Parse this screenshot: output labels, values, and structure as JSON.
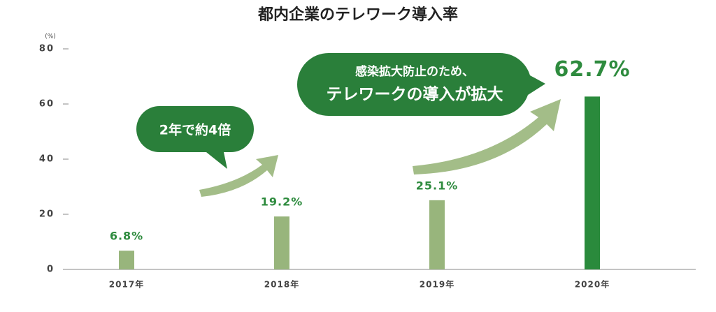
{
  "chart_data": {
    "type": "bar",
    "title": "都内企業のテレワーク導入率",
    "y_unit": "(%)",
    "categories": [
      "2017年",
      "2018年",
      "2019年",
      "2020年"
    ],
    "values": [
      6.8,
      19.2,
      25.1,
      62.7
    ],
    "value_labels": [
      "6.8%",
      "19.2%",
      "25.1%",
      "62.7%"
    ],
    "colors": [
      "#98b57c",
      "#98b57c",
      "#98b57c",
      "#2a8a3c"
    ],
    "label_color": "#2e8b3e",
    "ylim": [
      0,
      80
    ],
    "yticks": [
      0,
      20,
      40,
      60,
      80
    ],
    "grid": false,
    "annotations": [
      "2年で約4倍",
      "感染拡大防止のため、",
      "テレワークの導入が拡大"
    ]
  }
}
